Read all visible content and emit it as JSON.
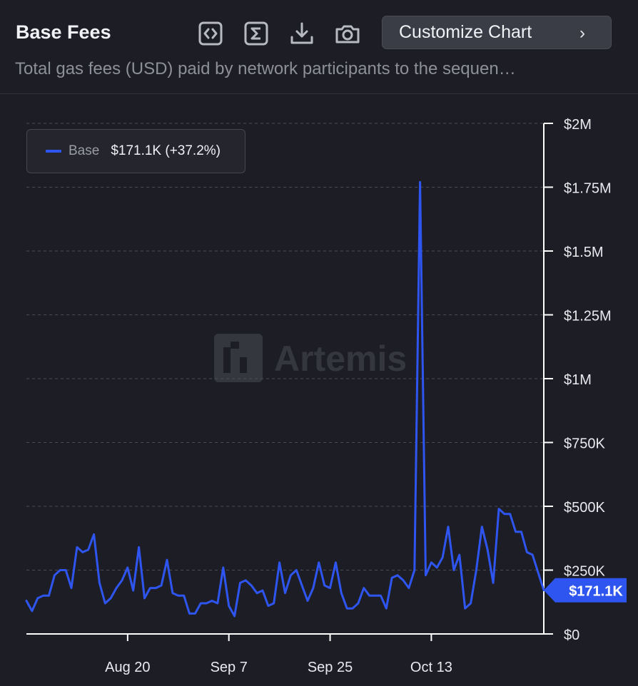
{
  "header": {
    "title": "Base Fees",
    "subtitle": "Total gas fees (USD) paid by network participants to the sequen…",
    "customize_label": "Customize Chart",
    "customize_chevron": "›",
    "icons": [
      "code-embed-icon",
      "sigma-icon",
      "download-icon",
      "camera-icon"
    ]
  },
  "legend": {
    "series_name": "Base",
    "value_text": "$171.1K (+37.2%)"
  },
  "watermark": "Artemis",
  "colors": {
    "background": "#1d1e25",
    "series": "#2f55f0",
    "grid": "#4a4c56",
    "axis": "#ffffff"
  },
  "chart_data": {
    "type": "line",
    "title": "Base Fees",
    "xlabel": "",
    "ylabel": "",
    "ylim": [
      0,
      2000000
    ],
    "y_ticks": [
      {
        "value": 0,
        "label": "$0"
      },
      {
        "value": 250000,
        "label": "$250K"
      },
      {
        "value": 500000,
        "label": "$500K"
      },
      {
        "value": 750000,
        "label": "$750K"
      },
      {
        "value": 1000000,
        "label": "$1M"
      },
      {
        "value": 1250000,
        "label": "$1.25M"
      },
      {
        "value": 1500000,
        "label": "$1.5M"
      },
      {
        "value": 1750000,
        "label": "$1.75M"
      },
      {
        "value": 2000000,
        "label": "$2M"
      }
    ],
    "x_ticks": [
      "Aug 20",
      "Sep 7",
      "Sep 25",
      "Oct 13"
    ],
    "x_tick_index": [
      18,
      36,
      54,
      72
    ],
    "grid": true,
    "legend_position": "top-left",
    "last_value_label": "$171.1K",
    "series": [
      {
        "name": "Base",
        "color": "#2f55f0",
        "values": [
          130000,
          90000,
          140000,
          150000,
          150000,
          230000,
          250000,
          250000,
          180000,
          340000,
          320000,
          330000,
          390000,
          200000,
          120000,
          140000,
          180000,
          210000,
          260000,
          170000,
          340000,
          140000,
          180000,
          180000,
          190000,
          290000,
          160000,
          150000,
          150000,
          80000,
          80000,
          120000,
          120000,
          130000,
          120000,
          260000,
          110000,
          70000,
          200000,
          210000,
          190000,
          160000,
          170000,
          110000,
          120000,
          280000,
          160000,
          230000,
          250000,
          190000,
          130000,
          180000,
          280000,
          190000,
          180000,
          280000,
          160000,
          100000,
          100000,
          120000,
          180000,
          150000,
          150000,
          150000,
          100000,
          220000,
          230000,
          210000,
          180000,
          250000,
          1770000,
          230000,
          280000,
          260000,
          300000,
          420000,
          250000,
          310000,
          100000,
          120000,
          250000,
          420000,
          330000,
          200000,
          490000,
          470000,
          470000,
          400000,
          400000,
          320000,
          310000,
          240000,
          171100
        ]
      }
    ]
  }
}
